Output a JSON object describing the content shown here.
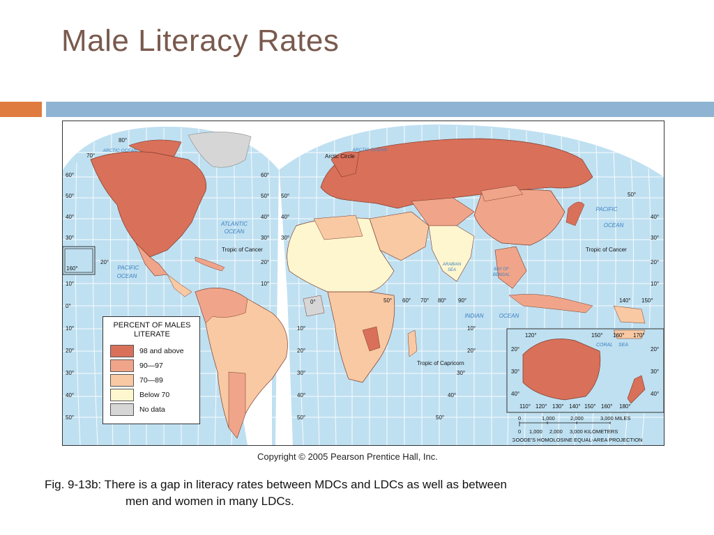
{
  "slide": {
    "title": "Male Literacy Rates",
    "caption_line1": "Fig. 9-13b: There is a gap in literacy rates between MDCs and LDCs as well as between",
    "caption_line2": "men and women in many LDCs.",
    "copyright": "Copyright © 2005 Pearson Prentice Hall, Inc."
  },
  "colors": {
    "ocean": "#bfe0f1",
    "grid": "#ffffff",
    "c98": "#d9705a",
    "c90": "#f0a58a",
    "c70": "#f8c9a3",
    "below70": "#fdf6cf",
    "nodata": "#d6d6d6",
    "ocean_label": "#3a7fc1",
    "accent_orange": "#e07b3f",
    "accent_blue": "#8fb3d3",
    "title_color": "#7a5a4e"
  },
  "legend": {
    "title": "PERCENT OF MALES LITERATE",
    "items": [
      {
        "label": "98 and above",
        "color": "#d9705a"
      },
      {
        "label": "90—97",
        "color": "#f0a58a"
      },
      {
        "label": "70—89",
        "color": "#f8c9a3"
      },
      {
        "label": "Below 70",
        "color": "#fdf6cf"
      },
      {
        "label": "No data",
        "color": "#d6d6d6"
      }
    ]
  },
  "map_labels": {
    "arctic_ocean_w": "ARCTIC OCEAN",
    "arctic_ocean_e": "ARCTIC OCEAN",
    "arctic_circle": "Arctic Circle",
    "atlantic_1": "ATLANTIC",
    "atlantic_2": "OCEAN",
    "pacific_w_1": "PACIFIC",
    "pacific_w_2": "OCEAN",
    "pacific_e_1": "PACIFIC",
    "pacific_e_2": "OCEAN",
    "indian_1": "INDIAN",
    "indian_2": "OCEAN",
    "arabian_1": "ARABIAN",
    "arabian_2": "SEA",
    "bengal_1": "BAY OF",
    "bengal_2": "BENGAL",
    "coral_1": "CORAL",
    "coral_2": "SEA",
    "tropic_cancer_w": "Tropic of Cancer",
    "tropic_cancer_e": "Tropic of Cancer",
    "tropic_capricorn": "Tropic of Capricorn",
    "projection": "MODIFIED GOODE'S HOMOLOSINE EQUAL-AREA PROJECTION",
    "scale_miles": "3,000 MILES",
    "scale_km": "3,000 KILOMETERS",
    "scale_m": [
      "0",
      "1,000",
      "2,000"
    ],
    "scale_k": [
      "0",
      "1,000",
      "2,000"
    ]
  },
  "lat_ticks_left": [
    "80°",
    "70°",
    "60°",
    "50°",
    "40°",
    "30°",
    "20°",
    "160°",
    "10°",
    "0°",
    "10°",
    "20°",
    "30°",
    "40°",
    "50°"
  ],
  "lat_ticks_mid": [
    "60°",
    "50°",
    "40°",
    "30°",
    "20°",
    "10°",
    "0°",
    "10°",
    "20°",
    "30°",
    "40°",
    "50°"
  ],
  "lat_ticks_right": [
    "50°",
    "40°",
    "30°",
    "20°",
    "10°"
  ],
  "lon_ticks_africa": [
    "50°",
    "60°",
    "70°",
    "80°",
    "90°"
  ],
  "lon_ticks_pacific": [
    "140°",
    "150°"
  ],
  "inset_ticks_top": [
    "120°",
    "150°",
    "160°",
    "170°"
  ],
  "inset_ticks_bottom": [
    "110°",
    "120°",
    "130°",
    "140°",
    "150°",
    "160°",
    "180°"
  ],
  "inset_ticks_left": [
    "20°",
    "30°",
    "40°"
  ],
  "inset_ticks_right": [
    "20°",
    "30°",
    "40°"
  ],
  "south_ticks_mid": [
    "10°",
    "20°",
    "30°",
    "40°",
    "50°"
  ]
}
